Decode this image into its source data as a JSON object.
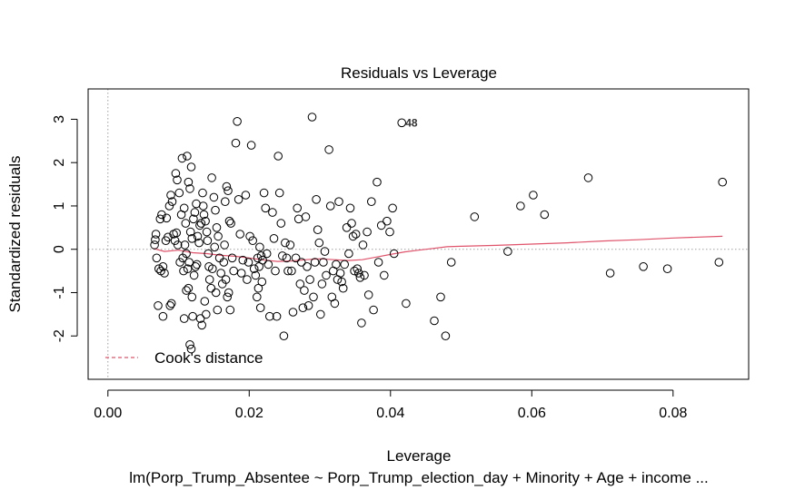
{
  "chart_data": {
    "type": "scatter",
    "title": "Residuals vs Leverage",
    "xlabel": "Leverage",
    "ylabel": "Standardized residuals",
    "caption": "lm(Porp_Trump_Absentee ~ Porp_Trump_election_day + Minority + Age + income  ...",
    "xlim": [
      -0.0028,
      0.0907
    ],
    "ylim": [
      -3.0,
      3.7
    ],
    "x_ticks": [
      "0.00",
      "0.02",
      "0.04",
      "0.06",
      "0.08"
    ],
    "x_tick_values": [
      0.0,
      0.02,
      0.04,
      0.06,
      0.08
    ],
    "y_ticks": [
      "-2",
      "-1",
      "0",
      "1",
      "2",
      "3"
    ],
    "y_tick_values": [
      -2,
      -1,
      0,
      1,
      2,
      3
    ],
    "point_color": "#000000",
    "smooth_color": "#DF536B",
    "guide_color": "#A0A0A0",
    "legend": {
      "position": "bottom-left",
      "label": "Cook's distance"
    },
    "annotation": {
      "label": "48",
      "x": 0.0425,
      "y": 2.92
    },
    "points": [
      [
        0.0067,
        0.22
      ],
      [
        0.0068,
        0.35
      ],
      [
        0.0066,
        0.1
      ],
      [
        0.0072,
        -0.45
      ],
      [
        0.0075,
        -0.5
      ],
      [
        0.0078,
        -0.4
      ],
      [
        0.0069,
        -0.2
      ],
      [
        0.0071,
        -1.3
      ],
      [
        0.0074,
        0.7
      ],
      [
        0.0076,
        0.8
      ],
      [
        0.0082,
        0.2
      ],
      [
        0.0085,
        0.28
      ],
      [
        0.0088,
        -1.3
      ],
      [
        0.009,
        -1.25
      ],
      [
        0.0078,
        -1.55
      ],
      [
        0.008,
        -0.55
      ],
      [
        0.0083,
        0.72
      ],
      [
        0.0087,
        1.0
      ],
      [
        0.0089,
        1.25
      ],
      [
        0.0091,
        1.1
      ],
      [
        0.0093,
        0.35
      ],
      [
        0.0095,
        0.2
      ],
      [
        0.0097,
        0.38
      ],
      [
        0.0099,
        0.1
      ],
      [
        0.0096,
        1.75
      ],
      [
        0.0098,
        1.6
      ],
      [
        0.0101,
        1.3
      ],
      [
        0.0104,
        0.8
      ],
      [
        0.0102,
        -0.3
      ],
      [
        0.0106,
        -0.2
      ],
      [
        0.0108,
        0.95
      ],
      [
        0.011,
        0.6
      ],
      [
        0.0105,
        2.1
      ],
      [
        0.0112,
        2.15
      ],
      [
        0.0114,
        1.55
      ],
      [
        0.0116,
        1.4
      ],
      [
        0.0118,
        1.9
      ],
      [
        0.0109,
        0.1
      ],
      [
        0.0111,
        -0.1
      ],
      [
        0.0113,
        -0.45
      ],
      [
        0.0107,
        -0.5
      ],
      [
        0.0115,
        -0.3
      ],
      [
        0.0117,
        0.4
      ],
      [
        0.0119,
        0.25
      ],
      [
        0.0121,
        0.7
      ],
      [
        0.0123,
        0.85
      ],
      [
        0.0125,
        1.05
      ],
      [
        0.012,
        -1.55
      ],
      [
        0.0108,
        -1.6
      ],
      [
        0.0111,
        -0.95
      ],
      [
        0.0114,
        -0.9
      ],
      [
        0.0119,
        -1.1
      ],
      [
        0.0122,
        -0.6
      ],
      [
        0.0124,
        -0.4
      ],
      [
        0.0126,
        -0.35
      ],
      [
        0.0127,
        0.3
      ],
      [
        0.0129,
        0.15
      ],
      [
        0.013,
        0.55
      ],
      [
        0.0132,
        0.6
      ],
      [
        0.0134,
        1.3
      ],
      [
        0.0135,
        1.0
      ],
      [
        0.0136,
        0.8
      ],
      [
        0.0138,
        0.65
      ],
      [
        0.014,
        0.4
      ],
      [
        0.0141,
        0.2
      ],
      [
        0.0142,
        -0.1
      ],
      [
        0.0143,
        -0.4
      ],
      [
        0.0144,
        -0.7
      ],
      [
        0.0146,
        -0.9
      ],
      [
        0.0148,
        -0.45
      ],
      [
        0.0131,
        -1.6
      ],
      [
        0.0133,
        -1.75
      ],
      [
        0.0137,
        -1.2
      ],
      [
        0.0139,
        -1.5
      ],
      [
        0.0116,
        -2.2
      ],
      [
        0.0118,
        -2.3
      ],
      [
        0.015,
        1.2
      ],
      [
        0.0152,
        0.9
      ],
      [
        0.0154,
        0.5
      ],
      [
        0.0156,
        0.3
      ],
      [
        0.0158,
        -0.2
      ],
      [
        0.016,
        -0.55
      ],
      [
        0.0162,
        -0.8
      ],
      [
        0.0164,
        -0.3
      ],
      [
        0.0147,
        1.65
      ],
      [
        0.0151,
        0.05
      ],
      [
        0.0153,
        -1.0
      ],
      [
        0.0155,
        -1.4
      ],
      [
        0.0166,
        1.1
      ],
      [
        0.0168,
        1.45
      ],
      [
        0.017,
        1.35
      ],
      [
        0.0172,
        0.65
      ],
      [
        0.0174,
        0.6
      ],
      [
        0.0176,
        -0.2
      ],
      [
        0.0178,
        -0.5
      ],
      [
        0.0165,
        0.1
      ],
      [
        0.0167,
        -0.7
      ],
      [
        0.0169,
        -1.1
      ],
      [
        0.0171,
        -1.0
      ],
      [
        0.0173,
        -1.4
      ],
      [
        0.0181,
        2.45
      ],
      [
        0.0183,
        2.95
      ],
      [
        0.0185,
        1.15
      ],
      [
        0.0187,
        0.35
      ],
      [
        0.0189,
        -0.55
      ],
      [
        0.0191,
        -0.25
      ],
      [
        0.0195,
        1.25
      ],
      [
        0.0197,
        -0.7
      ],
      [
        0.0199,
        -0.3
      ],
      [
        0.0201,
        0.3
      ],
      [
        0.0203,
        2.4
      ],
      [
        0.0205,
        0.2
      ],
      [
        0.0207,
        -0.45
      ],
      [
        0.0209,
        -0.6
      ],
      [
        0.0211,
        -1.1
      ],
      [
        0.0213,
        -0.9
      ],
      [
        0.0215,
        0.05
      ],
      [
        0.0217,
        -0.15
      ],
      [
        0.0219,
        -0.25
      ],
      [
        0.0221,
        1.3
      ],
      [
        0.0223,
        0.95
      ],
      [
        0.0225,
        -0.1
      ],
      [
        0.0227,
        -0.35
      ],
      [
        0.0229,
        -1.55
      ],
      [
        0.0212,
        -0.2
      ],
      [
        0.0214,
        -0.4
      ],
      [
        0.0216,
        -1.35
      ],
      [
        0.0218,
        -0.75
      ],
      [
        0.0233,
        0.85
      ],
      [
        0.0235,
        0.25
      ],
      [
        0.0237,
        -0.5
      ],
      [
        0.0239,
        -1.55
      ],
      [
        0.0241,
        2.15
      ],
      [
        0.0243,
        1.3
      ],
      [
        0.0245,
        0.6
      ],
      [
        0.0247,
        -0.15
      ],
      [
        0.0249,
        -2.0
      ],
      [
        0.0251,
        0.15
      ],
      [
        0.0253,
        -0.2
      ],
      [
        0.0255,
        -0.5
      ],
      [
        0.0258,
        0.1
      ],
      [
        0.026,
        -0.5
      ],
      [
        0.0262,
        -1.45
      ],
      [
        0.0266,
        -0.2
      ],
      [
        0.0268,
        0.95
      ],
      [
        0.027,
        0.7
      ],
      [
        0.0272,
        -0.8
      ],
      [
        0.0274,
        -0.3
      ],
      [
        0.0276,
        -1.35
      ],
      [
        0.0278,
        -0.95
      ],
      [
        0.028,
        0.75
      ],
      [
        0.0282,
        -0.4
      ],
      [
        0.0284,
        -1.3
      ],
      [
        0.0286,
        -0.7
      ],
      [
        0.0289,
        3.05
      ],
      [
        0.0291,
        -1.1
      ],
      [
        0.0293,
        -0.3
      ],
      [
        0.0295,
        1.15
      ],
      [
        0.0297,
        0.45
      ],
      [
        0.0299,
        0.15
      ],
      [
        0.0301,
        -1.5
      ],
      [
        0.0303,
        -0.8
      ],
      [
        0.0305,
        -0.3
      ],
      [
        0.0307,
        -0.05
      ],
      [
        0.0309,
        -0.6
      ],
      [
        0.0313,
        2.3
      ],
      [
        0.0315,
        1.0
      ],
      [
        0.0317,
        -1.1
      ],
      [
        0.0319,
        -0.5
      ],
      [
        0.0321,
        -1.25
      ],
      [
        0.0323,
        -0.35
      ],
      [
        0.0325,
        -0.7
      ],
      [
        0.0327,
        1.1
      ],
      [
        0.0329,
        -0.55
      ],
      [
        0.0331,
        -0.75
      ],
      [
        0.0333,
        -0.9
      ],
      [
        0.0335,
        -0.35
      ],
      [
        0.0338,
        0.5
      ],
      [
        0.0341,
        -0.1
      ],
      [
        0.0343,
        0.95
      ],
      [
        0.0345,
        0.6
      ],
      [
        0.0347,
        0.3
      ],
      [
        0.0349,
        -0.5
      ],
      [
        0.0351,
        0.35
      ],
      [
        0.0353,
        -0.45
      ],
      [
        0.0355,
        -0.55
      ],
      [
        0.0357,
        -0.65
      ],
      [
        0.0359,
        -1.7
      ],
      [
        0.0361,
        0.1
      ],
      [
        0.0363,
        -0.6
      ],
      [
        0.0367,
        0.4
      ],
      [
        0.0369,
        -1.05
      ],
      [
        0.0373,
        1.1
      ],
      [
        0.0376,
        -1.4
      ],
      [
        0.0381,
        1.55
      ],
      [
        0.0383,
        -0.3
      ],
      [
        0.0387,
        0.55
      ],
      [
        0.0391,
        -0.6
      ],
      [
        0.0395,
        0.65
      ],
      [
        0.0399,
        0.4
      ],
      [
        0.0403,
        0.95
      ],
      [
        0.0405,
        -0.1
      ],
      [
        0.0416,
        2.92
      ],
      [
        0.0422,
        -1.25
      ],
      [
        0.0462,
        -1.65
      ],
      [
        0.0471,
        -1.1
      ],
      [
        0.0478,
        -2.0
      ],
      [
        0.0486,
        -0.3
      ],
      [
        0.0519,
        0.75
      ],
      [
        0.0566,
        -0.05
      ],
      [
        0.0584,
        1.0
      ],
      [
        0.0602,
        1.25
      ],
      [
        0.0618,
        0.8
      ],
      [
        0.068,
        1.65
      ],
      [
        0.0711,
        -0.55
      ],
      [
        0.0758,
        -0.4
      ],
      [
        0.0792,
        -0.45
      ],
      [
        0.0865,
        -0.3
      ],
      [
        0.087,
        1.55
      ]
    ],
    "smooth_curve": [
      [
        0.0064,
        0.02
      ],
      [
        0.008,
        -0.05
      ],
      [
        0.01,
        -0.02
      ],
      [
        0.012,
        -0.08
      ],
      [
        0.014,
        -0.1
      ],
      [
        0.016,
        -0.14
      ],
      [
        0.018,
        -0.16
      ],
      [
        0.02,
        -0.2
      ],
      [
        0.0222,
        -0.25
      ],
      [
        0.024,
        -0.28
      ],
      [
        0.026,
        -0.27
      ],
      [
        0.028,
        -0.24
      ],
      [
        0.03,
        -0.22
      ],
      [
        0.032,
        -0.24
      ],
      [
        0.034,
        -0.26
      ],
      [
        0.036,
        -0.24
      ],
      [
        0.038,
        -0.18
      ],
      [
        0.04,
        -0.12
      ],
      [
        0.042,
        -0.06
      ],
      [
        0.044,
        -0.02
      ],
      [
        0.046,
        0.02
      ],
      [
        0.048,
        0.06
      ],
      [
        0.05,
        0.07
      ],
      [
        0.055,
        0.09
      ],
      [
        0.06,
        0.12
      ],
      [
        0.065,
        0.15
      ],
      [
        0.07,
        0.19
      ],
      [
        0.075,
        0.22
      ],
      [
        0.08,
        0.26
      ],
      [
        0.087,
        0.3
      ]
    ]
  }
}
